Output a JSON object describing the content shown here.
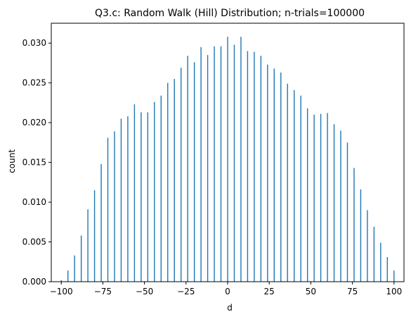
{
  "chart_data": {
    "type": "bar",
    "title": "Q3.c: Random Walk (Hill) Distribution; n-trials=100000",
    "xlabel": "d",
    "ylabel": "count",
    "xlim": [
      -106,
      106
    ],
    "ylim": [
      0,
      0.0325
    ],
    "xticks": [
      -100,
      -75,
      -50,
      -25,
      0,
      25,
      50,
      75,
      100
    ],
    "xtick_labels": [
      "−100",
      "−75",
      "−50",
      "−25",
      "0",
      "25",
      "50",
      "75",
      "100"
    ],
    "yticks": [
      0.0,
      0.005,
      0.01,
      0.015,
      0.02,
      0.025,
      0.03
    ],
    "ytick_labels": [
      "0.000",
      "0.005",
      "0.010",
      "0.015",
      "0.020",
      "0.025",
      "0.030"
    ],
    "grid": false,
    "bar_color": "#1f77b4",
    "x": [
      -100,
      -96,
      -92,
      -88,
      -84,
      -80,
      -76,
      -72,
      -68,
      -64,
      -60,
      -56,
      -52,
      -48,
      -44,
      -40,
      -36,
      -32,
      -28,
      -24,
      -20,
      -16,
      -12,
      -8,
      -4,
      0,
      4,
      8,
      12,
      16,
      20,
      24,
      28,
      32,
      36,
      40,
      44,
      48,
      52,
      56,
      60,
      64,
      68,
      72,
      76,
      80,
      84,
      88,
      92,
      96,
      100
    ],
    "values": [
      0.0002,
      0.0014,
      0.0033,
      0.0058,
      0.0091,
      0.0115,
      0.0148,
      0.0181,
      0.0189,
      0.0205,
      0.0208,
      0.0223,
      0.0213,
      0.0213,
      0.0226,
      0.0234,
      0.025,
      0.0255,
      0.0269,
      0.0284,
      0.0276,
      0.0295,
      0.0285,
      0.0296,
      0.0296,
      0.0308,
      0.0298,
      0.0308,
      0.029,
      0.0289,
      0.0284,
      0.0273,
      0.0268,
      0.0263,
      0.0249,
      0.0241,
      0.0234,
      0.0218,
      0.021,
      0.0211,
      0.0212,
      0.0198,
      0.019,
      0.0175,
      0.0143,
      0.0116,
      0.009,
      0.0069,
      0.0049,
      0.0031,
      0.0014
    ]
  }
}
